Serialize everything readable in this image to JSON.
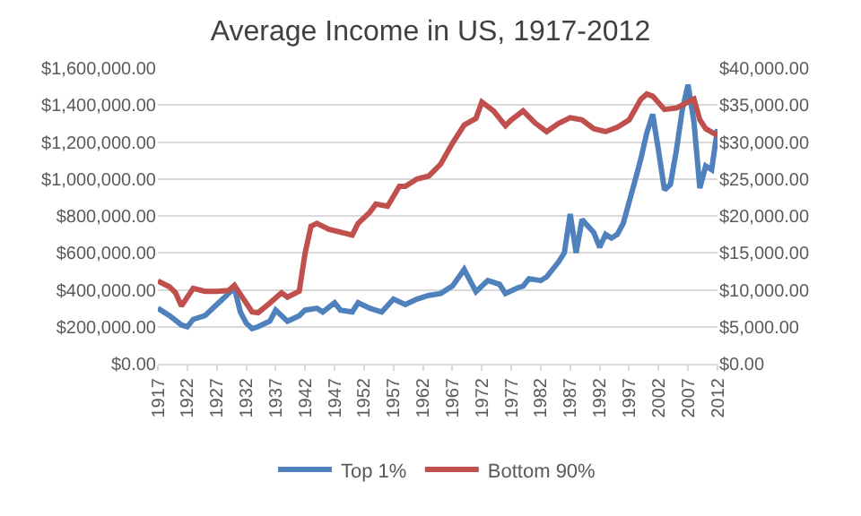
{
  "chart_data": {
    "type": "line",
    "title": "Average Income in US, 1917-2012",
    "xlim": [
      1917,
      2012
    ],
    "xticks": [
      1917,
      1922,
      1927,
      1932,
      1937,
      1942,
      1947,
      1952,
      1957,
      1962,
      1967,
      1972,
      1977,
      1982,
      1987,
      1992,
      1997,
      2002,
      2007,
      2012
    ],
    "ylim": [
      0,
      1600000
    ],
    "yticks": [
      {
        "value": 0,
        "label": "$0.00"
      },
      {
        "value": 200000,
        "label": "$200,000.00"
      },
      {
        "value": 400000,
        "label": "$400,000.00"
      },
      {
        "value": 600000,
        "label": "$600,000.00"
      },
      {
        "value": 800000,
        "label": "$800,000.00"
      },
      {
        "value": 1000000,
        "label": "$1,000,000.00"
      },
      {
        "value": 1200000,
        "label": "$1,200,000.00"
      },
      {
        "value": 1400000,
        "label": "$1,400,000.00"
      },
      {
        "value": 1600000,
        "label": "$1,600,000.00"
      }
    ],
    "y2lim": [
      0,
      40000
    ],
    "y2ticks": [
      {
        "value": 0,
        "label": "$0.00"
      },
      {
        "value": 5000,
        "label": "$5,000.00"
      },
      {
        "value": 10000,
        "label": "$10,000.00"
      },
      {
        "value": 15000,
        "label": "$15,000.00"
      },
      {
        "value": 20000,
        "label": "$20,000.00"
      },
      {
        "value": 25000,
        "label": "$25,000.00"
      },
      {
        "value": 30000,
        "label": "$30,000.00"
      },
      {
        "value": 35000,
        "label": "$35,000.00"
      },
      {
        "value": 40000,
        "label": "$40,000.00"
      }
    ],
    "grid": "y",
    "legend": "bottom",
    "marker": "none",
    "line_style": "solid",
    "series": [
      {
        "name": "Top 1%",
        "color": "#4f81bd",
        "x": [
          1917,
          1919,
          1921,
          1922,
          1923,
          1925,
          1927,
          1929,
          1930,
          1931,
          1932,
          1933,
          1934,
          1936,
          1937,
          1939,
          1941,
          1942,
          1944,
          1945,
          1947,
          1948,
          1950,
          1951,
          1953,
          1955,
          1957,
          1959,
          1961,
          1963,
          1965,
          1967,
          1969,
          1971,
          1973,
          1975,
          1976,
          1978,
          1979,
          1980,
          1982,
          1983,
          1985,
          1986,
          1987,
          1988,
          1989,
          1991,
          1992,
          1993,
          1994,
          1995,
          1996,
          1998,
          1999,
          2000,
          2001,
          2002,
          2003,
          2004,
          2005,
          2006,
          2007,
          2008,
          2009,
          2010,
          2011,
          2012
        ],
        "values": [
          300000,
          260000,
          210000,
          200000,
          240000,
          260000,
          320000,
          380000,
          410000,
          280000,
          220000,
          190000,
          200000,
          230000,
          290000,
          230000,
          260000,
          290000,
          300000,
          280000,
          330000,
          290000,
          280000,
          330000,
          300000,
          280000,
          350000,
          320000,
          350000,
          370000,
          380000,
          420000,
          510000,
          390000,
          450000,
          430000,
          380000,
          410000,
          420000,
          460000,
          450000,
          470000,
          550000,
          600000,
          810000,
          600000,
          780000,
          710000,
          630000,
          700000,
          680000,
          700000,
          760000,
          990000,
          1110000,
          1250000,
          1350000,
          1150000,
          940000,
          970000,
          1150000,
          1370000,
          1510000,
          1310000,
          950000,
          1070000,
          1050000,
          1270000
        ]
      },
      {
        "name": "Bottom 90%",
        "color": "#c0504d",
        "axis": "y2",
        "x": [
          1917,
          1919,
          1920,
          1921,
          1923,
          1925,
          1927,
          1929,
          1930,
          1931,
          1933,
          1934,
          1936,
          1938,
          1939,
          1941,
          1942,
          1943,
          1944,
          1946,
          1948,
          1950,
          1951,
          1953,
          1954,
          1956,
          1958,
          1959,
          1961,
          1963,
          1965,
          1967,
          1969,
          1971,
          1972,
          1974,
          1976,
          1977,
          1979,
          1981,
          1983,
          1985,
          1987,
          1989,
          1991,
          1993,
          1995,
          1997,
          1999,
          2000,
          2001,
          2003,
          2005,
          2007,
          2008,
          2009,
          2010,
          2012
        ],
        "values": [
          11200,
          10400,
          9600,
          7800,
          10200,
          9800,
          9800,
          9900,
          10600,
          9400,
          7000,
          6900,
          8200,
          9600,
          9000,
          9800,
          15000,
          18600,
          19000,
          18200,
          17800,
          17400,
          19000,
          20500,
          21600,
          21300,
          24000,
          24000,
          25000,
          25400,
          27000,
          29800,
          32300,
          33200,
          35400,
          34200,
          32200,
          33000,
          34200,
          32600,
          31400,
          32500,
          33300,
          33000,
          31800,
          31400,
          32000,
          33000,
          35800,
          36500,
          36200,
          34400,
          34600,
          35400,
          35800,
          33000,
          31800,
          30900
        ]
      }
    ]
  }
}
